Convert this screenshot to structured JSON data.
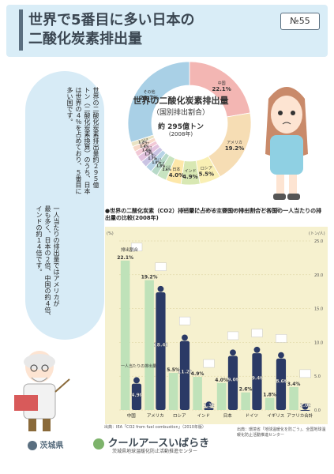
{
  "header": {
    "title_line1": "世界で5番目に多い日本の",
    "title_line2": "二酸化炭素排出量",
    "issue": "№55"
  },
  "intro": {
    "col1": "世界の二酸化炭素排出量約２９５億",
    "col2": "トン（二酸化炭素換算）のうち、日本",
    "col3": "は世界の４％を占めており、５番目に",
    "col4": "多い国です。",
    "col5": "一人当たりの排出量ではアメリカが",
    "col6": "最も多く、日本の２倍、中国の約４倍、",
    "col7": "インドの約１４倍です。"
  },
  "pie": {
    "title": "世界の二酸化炭素排出量",
    "subtitle": "（国別排出割合）",
    "total": "約 295億トン",
    "year": "(2008年)",
    "source": "出典：IEA「CO2 from fuel combustion」（2010年版）",
    "slices": [
      {
        "name": "中国",
        "value": 22.1,
        "color": "#f3b6b3"
      },
      {
        "name": "アメリカ",
        "value": 19.2,
        "color": "#f6ddb4"
      },
      {
        "name": "ロシア",
        "value": 5.5,
        "color": "#f9efb4"
      },
      {
        "name": "インド",
        "value": 4.9,
        "color": "#d8e8b3"
      },
      {
        "name": "日本",
        "value": 4.0,
        "color": "#fde7a9"
      },
      {
        "name": "ドイツ",
        "value": 2.6,
        "color": "#c7e3c0"
      },
      {
        "name": "カナダ",
        "value": 1.8,
        "color": "#b7d9c8"
      },
      {
        "name": "イギリス",
        "value": 1.8,
        "color": "#b7d3e6"
      },
      {
        "name": "イラン",
        "value": 1.7,
        "color": "#c9c3e3"
      },
      {
        "name": "韓国",
        "value": 1.7,
        "color": "#e3c3df"
      },
      {
        "name": "メキシコ",
        "value": 1.4,
        "color": "#f2c9d6"
      },
      {
        "name": "イタリア",
        "value": 1.4,
        "color": "#f7d9c9"
      },
      {
        "name": "フランス",
        "value": 1.2,
        "color": "#e9e3c4"
      },
      {
        "name": "その他",
        "value": 29.7,
        "color": "#a9d0e6"
      }
    ]
  },
  "chart_data": {
    "type": "bar",
    "title": "●世界の二酸化炭素（CO2）排出量に占める主要国の排出割合と各国の一人当たりの排出量の比較(2008年)",
    "categories": [
      "中国",
      "アメリカ",
      "ロシア",
      "インド",
      "日本",
      "ドイツ",
      "イギリス",
      "アフリカ合計"
    ],
    "series": [
      {
        "name": "排出割合",
        "values": [
          22.1,
          19.2,
          5.5,
          4.9,
          4.0,
          2.6,
          1.8,
          3.4
        ]
      },
      {
        "name": "一人当たりの排出量",
        "values": [
          4.9,
          18.4,
          11.2,
          1.3,
          9.0,
          9.4,
          8.6,
          1.0
        ]
      }
    ],
    "ylim": [
      0,
      25
    ],
    "yticks_left": [
      0,
      5,
      10,
      15,
      20,
      25
    ],
    "yticks_right": [
      0,
      5,
      10,
      15,
      20,
      25
    ],
    "right_unit": "(トン/人)",
    "left_unit": "(%)",
    "labels": {
      "share_label": "排出割合",
      "per_capita_label": "一人当たりの排出量"
    },
    "share_label_texts": [
      "22.1%",
      "19.2%",
      "5.5%",
      "4.9%",
      "4.0%",
      "2.6%",
      "1.8%",
      "3.4%"
    ],
    "per_capita_texts": [
      "4.9t",
      "18.4t",
      "11.2t",
      "1.3t",
      "9.0t",
      "9.4t",
      "8.6t",
      "1.0t"
    ],
    "source": "出典：IEA「CO2 from fuel combustion」（2010年版）"
  },
  "footer": {
    "pref": "茨城県",
    "brand": "クールアースいばらき",
    "org": "茨城県地球温暖化防止活動推進センター",
    "source_right": "出典：環境省「地球温暖化を防ごう」、全国地球温暖化防止活動推進センター"
  },
  "colors": {
    "header_bg": "#d9edf7",
    "pie_other": "#a9d0e6",
    "share_bar": "#bfe2b9",
    "person_silhouette": "#2b3a66",
    "chart_bg": "#f6f1cf"
  }
}
